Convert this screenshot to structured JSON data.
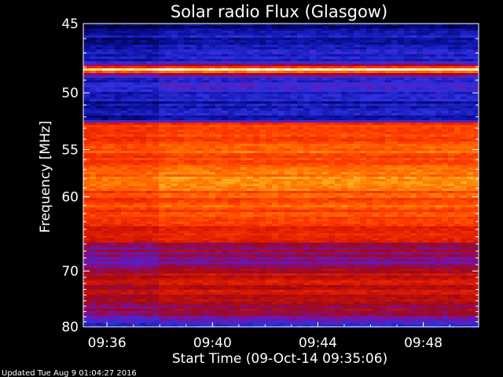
{
  "chart_data": {
    "type": "heatmap",
    "title": "Solar radio Flux (Glasgow)",
    "ylabel": "Frequency [MHz]",
    "xlabel": "Start Time (09-Oct-14 09:35:06)",
    "footer": "Updated Tue Aug  9 01:04:27 2016",
    "x_ticks": [
      "09:36",
      "09:40",
      "09:44",
      "09:48"
    ],
    "x_tick_minutes": [
      0.9,
      4.9,
      8.9,
      12.9
    ],
    "xlim_minutes": [
      0,
      15
    ],
    "y_ticks": [
      45,
      50,
      55,
      60,
      70,
      80
    ],
    "ylim": [
      45,
      80
    ],
    "y_scale": "reciprocal",
    "colormap": [
      "#000030",
      "#0a10a0",
      "#3030e0",
      "#7a10a0",
      "#a00818",
      "#d81800",
      "#ff3a00",
      "#ff7a00",
      "#ffd040",
      "#ffffff"
    ],
    "band_profile": [
      {
        "mhz": 45.0,
        "level": 0.05
      },
      {
        "mhz": 46.5,
        "level": 0.18
      },
      {
        "mhz": 47.7,
        "level": 0.22
      },
      {
        "mhz": 48.2,
        "level": 0.98
      },
      {
        "mhz": 48.7,
        "level": 0.25
      },
      {
        "mhz": 49.8,
        "level": 0.2
      },
      {
        "mhz": 51.0,
        "level": 0.15
      },
      {
        "mhz": 52.2,
        "level": 0.12
      },
      {
        "mhz": 52.6,
        "level": 0.55
      },
      {
        "mhz": 53.0,
        "level": 0.72
      },
      {
        "mhz": 55.0,
        "level": 0.7
      },
      {
        "mhz": 57.5,
        "level": 0.76
      },
      {
        "mhz": 58.8,
        "level": 0.74
      },
      {
        "mhz": 61.0,
        "level": 0.7
      },
      {
        "mhz": 63.0,
        "level": 0.66
      },
      {
        "mhz": 65.0,
        "level": 0.55
      },
      {
        "mhz": 66.0,
        "level": 0.48
      },
      {
        "mhz": 67.5,
        "level": 0.38
      },
      {
        "mhz": 68.5,
        "level": 0.36
      },
      {
        "mhz": 70.0,
        "level": 0.5
      },
      {
        "mhz": 72.0,
        "level": 0.55
      },
      {
        "mhz": 74.0,
        "level": 0.5
      },
      {
        "mhz": 76.0,
        "level": 0.44
      },
      {
        "mhz": 78.0,
        "level": 0.35
      },
      {
        "mhz": 80.0,
        "level": 0.2
      }
    ]
  }
}
